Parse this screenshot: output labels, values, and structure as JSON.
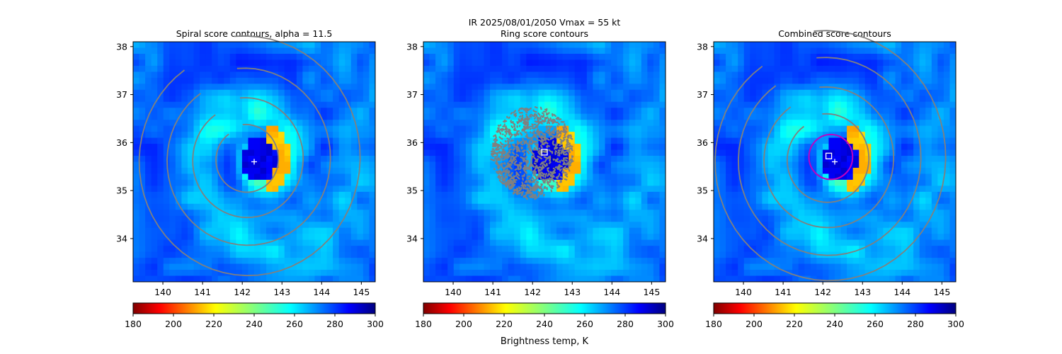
{
  "suptitle": "IR  2025/08/01/2050    Vmax = 55 kt",
  "colorbar_label": "Brightness temp, K",
  "chart_data": [
    {
      "type": "heatmap",
      "title": "Spiral score contours, alpha = 11.5",
      "xlim": [
        139.25,
        145.35
      ],
      "ylim": [
        33.1,
        38.1
      ],
      "xticks": [
        140,
        141,
        142,
        143,
        144,
        145
      ],
      "yticks": [
        34,
        35,
        36,
        37,
        38
      ],
      "colormap": "jet",
      "colorbar_range": [
        180,
        300
      ],
      "colorbar_ticks": [
        180,
        200,
        220,
        240,
        260,
        280,
        300
      ],
      "eye_center": [
        142.45,
        35.65
      ],
      "spiral_contour_rings_deg": [
        0.65,
        1.15,
        1.7,
        2.3
      ],
      "markers": [
        {
          "symbol": "plus",
          "x": 142.3,
          "y": 35.6,
          "color": "#ffffff"
        }
      ]
    },
    {
      "type": "heatmap",
      "title": "Ring score contours",
      "xlim": [
        139.25,
        145.35
      ],
      "ylim": [
        33.1,
        38.1
      ],
      "xticks": [
        140,
        141,
        142,
        143,
        144,
        145
      ],
      "yticks": [
        34,
        35,
        36,
        37,
        38
      ],
      "colormap": "jet",
      "colorbar_range": [
        180,
        300
      ],
      "colorbar_ticks": [
        180,
        200,
        220,
        240,
        260,
        280,
        300
      ],
      "eye_center": [
        142.45,
        35.65
      ],
      "ring_score_region": {
        "center": [
          142.0,
          35.8
        ],
        "radius_deg": 0.95
      },
      "markers": [
        {
          "symbol": "square",
          "x": 142.3,
          "y": 35.8,
          "color": "#ffffff"
        }
      ]
    },
    {
      "type": "heatmap",
      "title": "Combined score contours",
      "xlim": [
        139.25,
        145.35
      ],
      "ylim": [
        33.1,
        38.1
      ],
      "xticks": [
        140,
        141,
        142,
        143,
        144,
        145
      ],
      "yticks": [
        34,
        35,
        36,
        37,
        38
      ],
      "colormap": "jet",
      "colorbar_range": [
        180,
        300
      ],
      "colorbar_ticks": [
        180,
        200,
        220,
        240,
        260,
        280,
        300
      ],
      "eye_center": [
        142.45,
        35.65
      ],
      "spiral_contour_rings_deg": [
        0.85,
        1.35,
        1.9,
        2.4
      ],
      "combined_max_circle": {
        "center": [
          142.2,
          35.7
        ],
        "radius_deg": 0.55,
        "color": "#c000c0"
      },
      "markers": [
        {
          "symbol": "square",
          "x": 142.15,
          "y": 35.72,
          "color": "#ffffff"
        },
        {
          "symbol": "plus",
          "x": 142.3,
          "y": 35.6,
          "color": "#ffffff"
        }
      ]
    }
  ]
}
